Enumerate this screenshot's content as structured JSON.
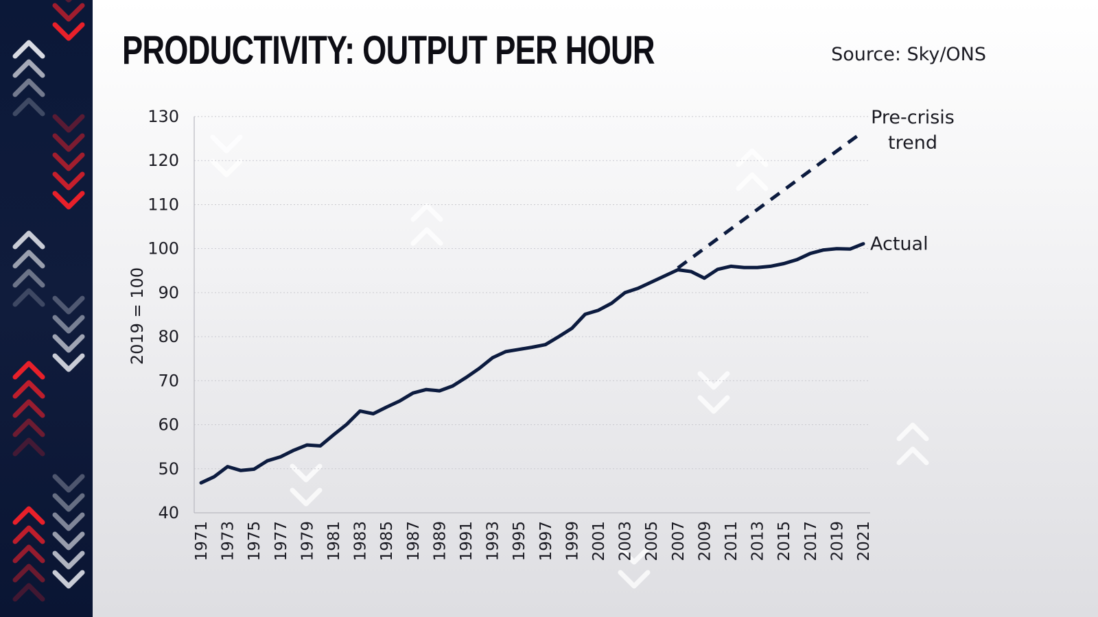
{
  "header": {
    "title": "PRODUCTIVITY: OUTPUT PER HOUR",
    "source": "Source: Sky/ONS"
  },
  "colors": {
    "band": "#0b1838",
    "line": "#0c1b3f",
    "accent_red": "#e8202a"
  },
  "decor": {
    "icon": "chevron-arrows-icon"
  },
  "chart_data": {
    "type": "line",
    "ylabel": "2019 = 100",
    "xlabel": "",
    "ylim": [
      40,
      130
    ],
    "yticks": [
      40,
      50,
      60,
      70,
      80,
      90,
      100,
      110,
      120,
      130
    ],
    "xticks": [
      "1971",
      "1973",
      "1975",
      "1977",
      "1979",
      "1981",
      "1983",
      "1985",
      "1987",
      "1989",
      "1991",
      "1993",
      "1995",
      "1997",
      "1999",
      "2001",
      "2003",
      "2005",
      "2007",
      "2009",
      "2011",
      "2013",
      "2015",
      "2017",
      "2019",
      "2021"
    ],
    "grid": "horizontal-dotted",
    "series": [
      {
        "name": "Actual",
        "style": "solid",
        "x": [
          1971,
          1972,
          1973,
          1974,
          1975,
          1976,
          1977,
          1978,
          1979,
          1980,
          1981,
          1982,
          1983,
          1984,
          1985,
          1986,
          1987,
          1988,
          1989,
          1990,
          1991,
          1992,
          1993,
          1994,
          1995,
          1996,
          1997,
          1998,
          1999,
          2000,
          2001,
          2002,
          2003,
          2004,
          2005,
          2006,
          2007,
          2008,
          2009,
          2010,
          2011,
          2012,
          2013,
          2014,
          2015,
          2016,
          2017,
          2018,
          2019,
          2020,
          2021
        ],
        "values": [
          46.8,
          48.2,
          50.5,
          49.6,
          49.9,
          51.8,
          52.7,
          54.2,
          55.4,
          55.2,
          57.7,
          60.1,
          63.1,
          62.5,
          64.0,
          65.4,
          67.2,
          68.0,
          67.7,
          68.8,
          70.7,
          72.8,
          75.2,
          76.6,
          77.1,
          77.6,
          78.2,
          80.0,
          81.9,
          85.1,
          86.0,
          87.6,
          90.0,
          91.0,
          92.4,
          93.8,
          95.2,
          94.8,
          93.3,
          95.3,
          96.0,
          95.7,
          95.7,
          96.0,
          96.6,
          97.5,
          98.9,
          99.7,
          100.0,
          99.9,
          101.1
        ]
      },
      {
        "name": "Pre-crisis trend",
        "style": "dashed",
        "x": [
          2007,
          2021
        ],
        "values": [
          95.6,
          126.6
        ]
      }
    ],
    "annotations": [
      {
        "series": "Actual",
        "text": "Actual"
      },
      {
        "series": "Pre-crisis trend",
        "lines": [
          "Pre-crisis",
          "trend"
        ]
      }
    ]
  }
}
